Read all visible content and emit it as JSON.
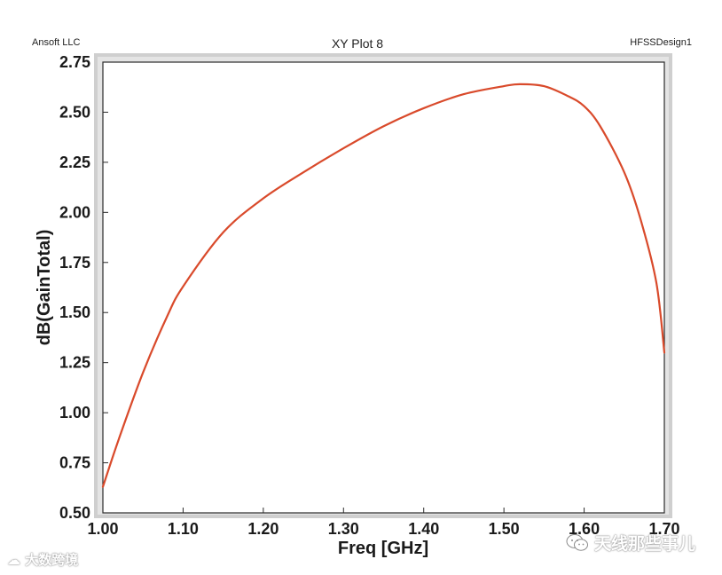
{
  "header": {
    "left": "Ansoft LLC",
    "title": "XY Plot 8",
    "right": "HFSSDesign1"
  },
  "watermarks": {
    "left_text": "大数跨境",
    "left_icon": "cloud-logo-icon",
    "right_text": "天线那些事儿",
    "right_icon": "wechat-icon"
  },
  "colors": {
    "curve": "#d94a2b",
    "frame": "#c8c8c8",
    "inner_border": "#2a2a2a"
  },
  "chart_data": {
    "type": "line",
    "title": "XY Plot 8",
    "xlabel": "Freq [GHz]",
    "ylabel": "dB(GainTotal)",
    "xlim": [
      1.0,
      1.7
    ],
    "ylim": [
      0.5,
      2.75
    ],
    "xticks": [
      "1.00",
      "1.10",
      "1.20",
      "1.30",
      "1.40",
      "1.50",
      "1.60",
      "1.70"
    ],
    "yticks": [
      "0.50",
      "0.75",
      "1.00",
      "1.25",
      "1.50",
      "1.75",
      "2.00",
      "2.25",
      "2.50",
      "2.75"
    ],
    "grid": false,
    "legend": "none",
    "series": [
      {
        "x": [
          1.0,
          1.02,
          1.05,
          1.08,
          1.1,
          1.15,
          1.2,
          1.25,
          1.3,
          1.35,
          1.4,
          1.45,
          1.5,
          1.52,
          1.55,
          1.58,
          1.6,
          1.62,
          1.65,
          1.67,
          1.69,
          1.7
        ],
        "y": [
          0.63,
          0.87,
          1.2,
          1.48,
          1.63,
          1.9,
          2.07,
          2.2,
          2.32,
          2.43,
          2.52,
          2.59,
          2.63,
          2.64,
          2.63,
          2.58,
          2.53,
          2.43,
          2.2,
          1.97,
          1.65,
          1.3
        ]
      }
    ]
  }
}
